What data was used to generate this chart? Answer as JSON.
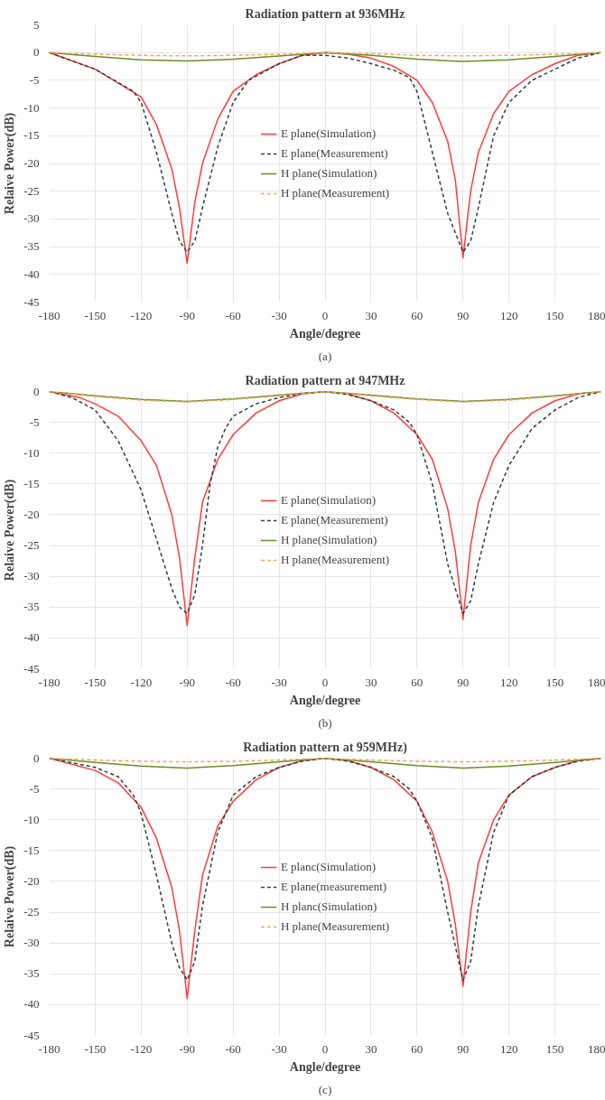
{
  "chart_data": [
    {
      "type": "line",
      "title": "Radiation pattern at 936MHz",
      "xlabel": "Angle/degree",
      "ylabel": "Relaive Power(dB)",
      "xlim": [
        -180,
        180
      ],
      "ylim": [
        -45,
        5
      ],
      "xticks": [
        -180,
        -150,
        -120,
        -90,
        -60,
        -30,
        0,
        30,
        60,
        90,
        120,
        150,
        180
      ],
      "yticks": [
        -45,
        -40,
        -35,
        -30,
        -25,
        -20,
        -15,
        -10,
        -5,
        0,
        5
      ],
      "grid": true,
      "legend": "center",
      "annotations": [
        "(a)"
      ],
      "series": [
        {
          "name": "E plane(Simulation)",
          "color": "#ff3b3b",
          "line_style": "solid",
          "x": [
            -180,
            -150,
            -120,
            -110,
            -100,
            -95,
            -90,
            -85,
            -80,
            -70,
            -60,
            -45,
            -30,
            -15,
            0,
            15,
            30,
            45,
            60,
            70,
            80,
            85,
            90,
            95,
            100,
            110,
            120,
            135,
            150,
            165,
            180
          ],
          "values": [
            0,
            -3,
            -8,
            -13,
            -21,
            -28,
            -38,
            -27,
            -20,
            -12,
            -7,
            -4,
            -2,
            -0.5,
            0,
            -0.3,
            -1,
            -2.5,
            -5,
            -9,
            -16,
            -23,
            -37,
            -25,
            -18,
            -11,
            -7,
            -4,
            -2,
            -0.5,
            0
          ]
        },
        {
          "name": "E plane(Measurement)",
          "color": "#2f3f3f",
          "line_style": "dashed",
          "x": [
            -180,
            -150,
            -125,
            -120,
            -110,
            -100,
            -95,
            -90,
            -85,
            -80,
            -70,
            -60,
            -50,
            -30,
            -15,
            0,
            15,
            30,
            45,
            55,
            60,
            70,
            80,
            90,
            95,
            100,
            110,
            120,
            135,
            150,
            165,
            180
          ],
          "values": [
            0,
            -3,
            -7,
            -9,
            -18,
            -29,
            -34,
            -36,
            -34,
            -28,
            -17,
            -9,
            -5,
            -2,
            -0.5,
            -0.5,
            -1,
            -2,
            -3.2,
            -4.5,
            -7,
            -18,
            -29,
            -36,
            -34,
            -28,
            -15,
            -9,
            -5,
            -3,
            -1,
            0
          ]
        },
        {
          "name": "H plane(Simulation)",
          "color": "#6b8e23",
          "line_style": "solid",
          "x": [
            -180,
            -150,
            -120,
            -90,
            -60,
            -30,
            0,
            30,
            60,
            90,
            120,
            150,
            180
          ],
          "values": [
            0,
            -0.7,
            -1.3,
            -1.5,
            -1.2,
            -0.6,
            0,
            -0.5,
            -1.2,
            -1.6,
            -1.3,
            -0.7,
            0
          ]
        },
        {
          "name": "H plane(Measurement)",
          "color": "#f4a460",
          "line_style": "dashed",
          "x": [
            -180,
            -150,
            -120,
            -90,
            -60,
            -30,
            0,
            30,
            60,
            90,
            120,
            150,
            180
          ],
          "values": [
            0,
            -0.3,
            -0.5,
            -0.6,
            -0.5,
            -0.3,
            0,
            -0.2,
            -0.5,
            -0.6,
            -0.5,
            -0.3,
            0
          ]
        }
      ]
    },
    {
      "type": "line",
      "title": "Radiation pattern at 947MHz",
      "xlabel": "Angle/degree",
      "ylabel": "Relaive Power(dB)",
      "xlim": [
        -180,
        180
      ],
      "ylim": [
        -45,
        0
      ],
      "xticks": [
        -180,
        -150,
        -120,
        -90,
        -60,
        -30,
        0,
        30,
        60,
        90,
        120,
        150,
        180
      ],
      "yticks": [
        -45,
        -40,
        -35,
        -30,
        -25,
        -20,
        -15,
        -10,
        -5,
        0
      ],
      "grid": true,
      "legend": "center",
      "annotations": [
        "(b)"
      ],
      "series": [
        {
          "name": "E plane(Simulation)",
          "color": "#ff3b3b",
          "line_style": "solid",
          "x": [
            -180,
            -160,
            -150,
            -135,
            -120,
            -110,
            -100,
            -95,
            -90,
            -85,
            -80,
            -70,
            -60,
            -45,
            -30,
            -15,
            0,
            15,
            30,
            45,
            60,
            70,
            80,
            85,
            90,
            95,
            100,
            110,
            120,
            135,
            150,
            165,
            180
          ],
          "values": [
            0,
            -1,
            -2,
            -4,
            -8,
            -12,
            -20,
            -27,
            -38,
            -27,
            -18,
            -11,
            -7,
            -3.5,
            -1.5,
            -0.4,
            0,
            -0.4,
            -1.5,
            -3.5,
            -7,
            -11,
            -19,
            -26,
            -37,
            -25,
            -18,
            -11,
            -7,
            -3.5,
            -1.5,
            -0.4,
            0
          ]
        },
        {
          "name": "E plane(Measurement)",
          "color": "#2f3f3f",
          "line_style": "dashed",
          "x": [
            -180,
            -165,
            -150,
            -135,
            -120,
            -110,
            -100,
            -95,
            -90,
            -85,
            -80,
            -75,
            -70,
            -65,
            -60,
            -45,
            -30,
            -15,
            0,
            15,
            30,
            45,
            55,
            60,
            70,
            80,
            90,
            95,
            100,
            110,
            120,
            135,
            150,
            165,
            180
          ],
          "values": [
            0,
            -1,
            -3,
            -8,
            -16,
            -24,
            -32,
            -35,
            -36,
            -33,
            -25,
            -15,
            -9,
            -6,
            -4,
            -2,
            -1,
            -0.3,
            0,
            -0.5,
            -1.5,
            -3,
            -5,
            -7,
            -15,
            -28,
            -36,
            -34,
            -28,
            -18,
            -12,
            -6,
            -3,
            -1,
            0
          ]
        },
        {
          "name": "H plane(Simulation)",
          "color": "#6b8e23",
          "line_style": "solid",
          "x": [
            -180,
            -150,
            -120,
            -90,
            -60,
            -30,
            0,
            30,
            60,
            90,
            120,
            150,
            180
          ],
          "values": [
            0,
            -0.7,
            -1.3,
            -1.6,
            -1.2,
            -0.6,
            0,
            -0.6,
            -1.2,
            -1.6,
            -1.3,
            -0.7,
            0
          ]
        },
        {
          "name": "H plane(Measurement)",
          "color": "#f4a460",
          "line_style": "dashed",
          "x": [
            -180,
            -150,
            -120,
            -90,
            -60,
            -30,
            0,
            30,
            60,
            90,
            120,
            150,
            180
          ],
          "values": [
            0,
            -0.8,
            -1.4,
            -1.7,
            -1.3,
            -0.7,
            0,
            -0.7,
            -1.3,
            -1.7,
            -1.4,
            -0.8,
            0
          ]
        }
      ]
    },
    {
      "type": "line",
      "title": "Radiation pattern at 959MHz)",
      "xlabel": "Angle/degree",
      "ylabel": "Relaive Power(dB)",
      "xlim": [
        -180,
        180
      ],
      "ylim": [
        -45,
        0
      ],
      "xticks": [
        -180,
        -150,
        -120,
        -90,
        -60,
        -30,
        0,
        30,
        60,
        90,
        120,
        150,
        180
      ],
      "yticks": [
        -45,
        -40,
        -35,
        -30,
        -25,
        -20,
        -15,
        -10,
        -5,
        0
      ],
      "grid": true,
      "legend": "center",
      "annotations": [
        "(c)"
      ],
      "series": [
        {
          "name": "E planc(Simulation)",
          "color": "#ff3b3b",
          "line_style": "solid",
          "x": [
            -180,
            -150,
            -135,
            -120,
            -110,
            -100,
            -95,
            -90,
            -85,
            -80,
            -70,
            -60,
            -45,
            -30,
            -15,
            0,
            15,
            30,
            45,
            60,
            70,
            80,
            85,
            90,
            95,
            100,
            110,
            120,
            135,
            150,
            165,
            180
          ],
          "values": [
            0,
            -2,
            -4,
            -8,
            -13,
            -21,
            -28,
            -39,
            -28,
            -19,
            -11,
            -7,
            -3.5,
            -1.5,
            -0.4,
            0,
            -0.4,
            -1.5,
            -3.5,
            -7,
            -12,
            -20,
            -27,
            -37,
            -25,
            -17,
            -10,
            -6,
            -3,
            -1.5,
            -0.4,
            0
          ]
        },
        {
          "name": "E plane(measurement)",
          "color": "#2f3f3f",
          "line_style": "dashed",
          "x": [
            -180,
            -150,
            -135,
            -125,
            -120,
            -110,
            -100,
            -95,
            -90,
            -85,
            -80,
            -70,
            -60,
            -45,
            -30,
            -15,
            0,
            15,
            30,
            45,
            55,
            60,
            70,
            80,
            90,
            95,
            100,
            110,
            120,
            135,
            150,
            165,
            180
          ],
          "values": [
            0,
            -1.5,
            -3,
            -6,
            -9,
            -19,
            -30,
            -34,
            -36,
            -33,
            -24,
            -12,
            -6,
            -3,
            -1.5,
            -0.5,
            0,
            -0.5,
            -1.5,
            -3,
            -5,
            -7,
            -13,
            -25,
            -36,
            -33,
            -24,
            -12,
            -6,
            -3,
            -1.5,
            -0.5,
            0
          ]
        },
        {
          "name": "H planc(Simulation)",
          "color": "#6b8e23",
          "line_style": "solid",
          "x": [
            -180,
            -150,
            -120,
            -90,
            -60,
            -30,
            0,
            30,
            60,
            90,
            120,
            150,
            180
          ],
          "values": [
            0,
            -0.7,
            -1.3,
            -1.6,
            -1.2,
            -0.6,
            0,
            -0.6,
            -1.2,
            -1.6,
            -1.3,
            -0.7,
            0
          ]
        },
        {
          "name": "H plane(Measurement)",
          "color": "#f4a460",
          "line_style": "dashed",
          "x": [
            -180,
            -150,
            -120,
            -90,
            -60,
            -30,
            0,
            30,
            60,
            90,
            120,
            150,
            180
          ],
          "values": [
            0,
            -0.3,
            -0.5,
            -0.6,
            -0.5,
            -0.3,
            0,
            -0.3,
            -0.5,
            -0.6,
            -0.5,
            -0.3,
            0
          ]
        }
      ]
    }
  ]
}
